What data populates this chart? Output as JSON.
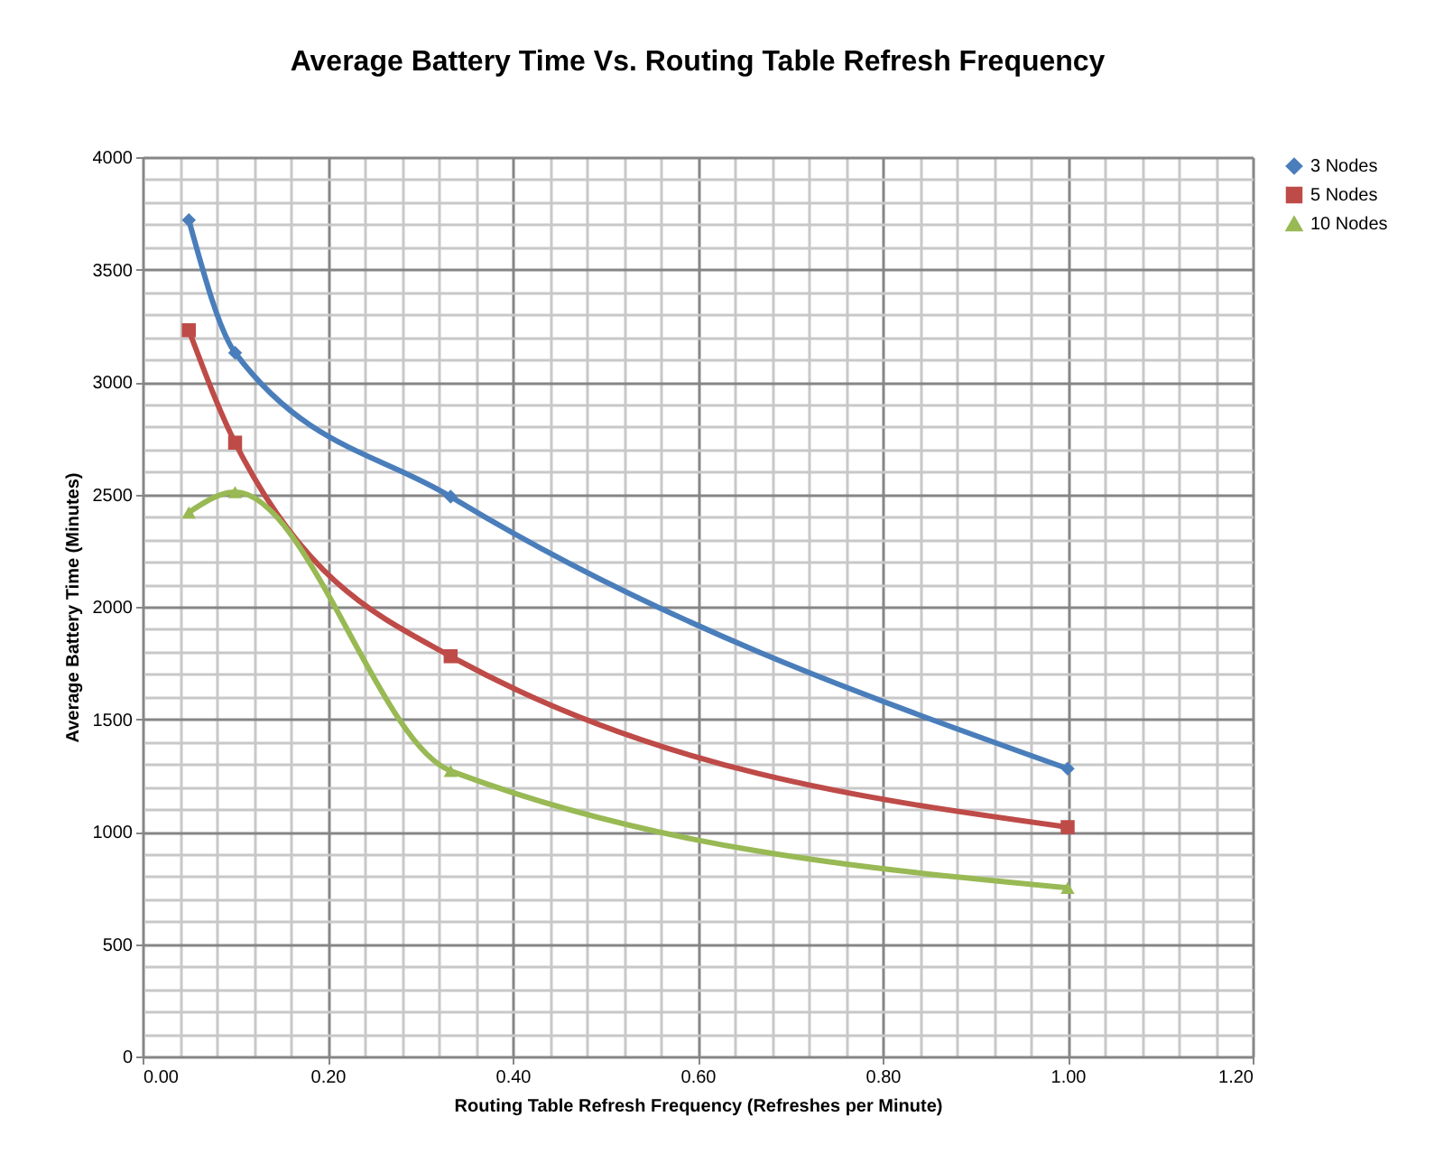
{
  "chart_data": {
    "type": "line",
    "title": "Average Battery Time Vs. Routing Table Refresh Frequency",
    "xlabel": "Routing Table  Refresh Frequency (Refreshes per Minute)",
    "ylabel": "Average Battery Time (Minutes)",
    "x": [
      0.05,
      0.1,
      0.333,
      1.0
    ],
    "series": [
      {
        "name": "3 Nodes",
        "color": "#4a7ebb",
        "marker": "diamond",
        "values": [
          3720,
          3130,
          2490,
          1280
        ]
      },
      {
        "name": "5 Nodes",
        "color": "#be4b48",
        "marker": "square",
        "values": [
          3230,
          2730,
          1780,
          1020
        ]
      },
      {
        "name": "10 Nodes",
        "color": "#98b954",
        "marker": "triangle",
        "values": [
          2420,
          2510,
          1270,
          750
        ]
      }
    ],
    "xlim": [
      0,
      1.2
    ],
    "xticks": [
      {
        "value": 0,
        "label": "0.00"
      },
      {
        "value": 0.2,
        "label": "0.20"
      },
      {
        "value": 0.4,
        "label": "0.40"
      },
      {
        "value": 0.6,
        "label": "0.60"
      },
      {
        "value": 0.8,
        "label": "0.80"
      },
      {
        "value": 1.0,
        "label": "1.00"
      },
      {
        "value": 1.2,
        "label": "1.20"
      }
    ],
    "ylim": [
      0,
      4000
    ],
    "yticks": [
      0,
      500,
      1000,
      1500,
      2000,
      2500,
      3000,
      3500,
      4000
    ],
    "grid": true,
    "legend": "right",
    "line_style": "solid"
  }
}
